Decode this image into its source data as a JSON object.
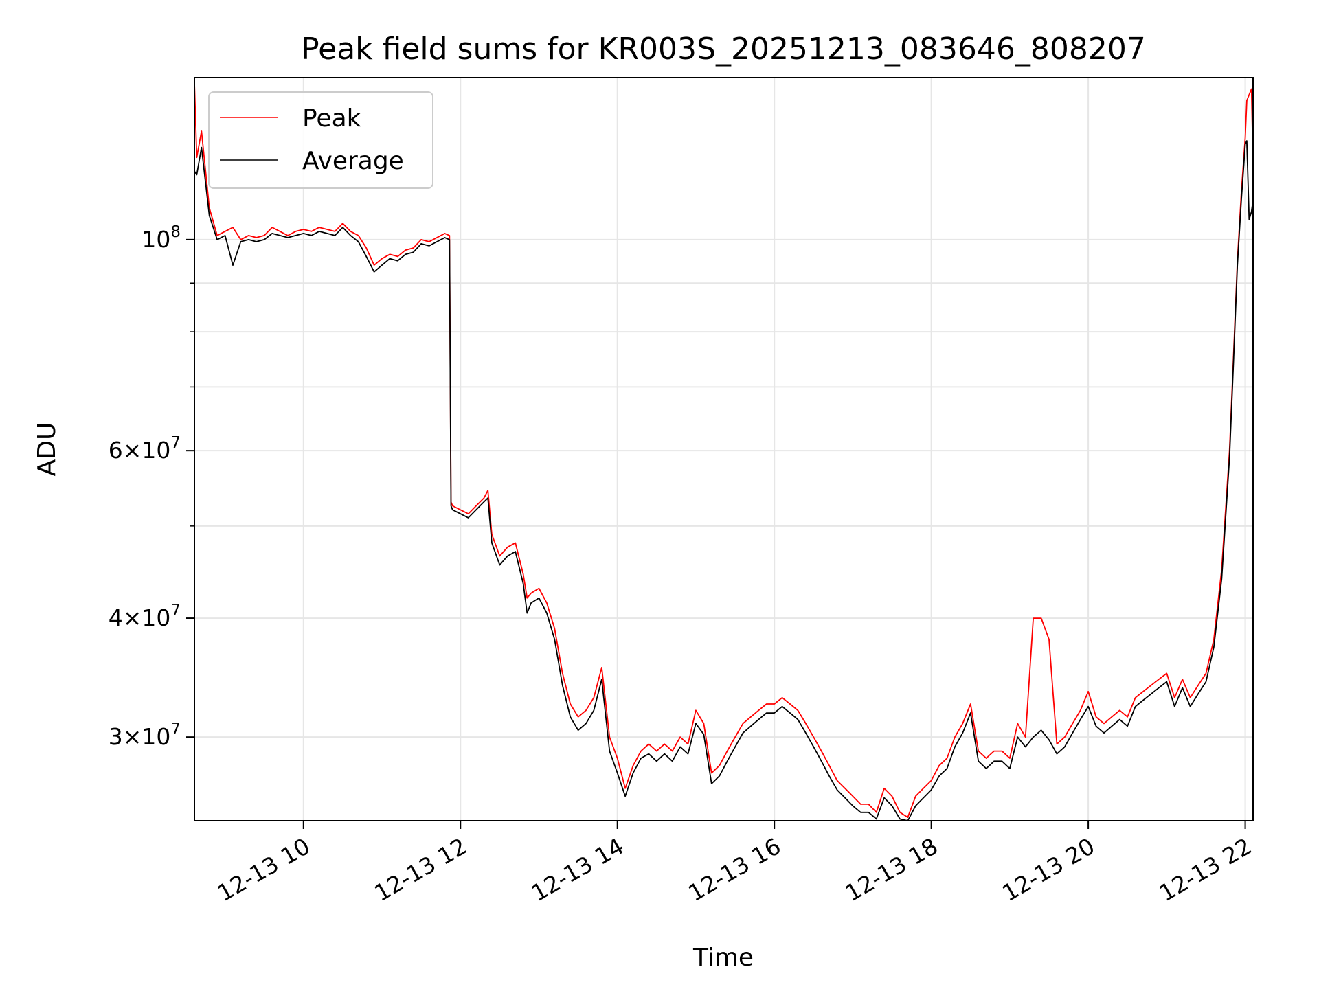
{
  "chart_data": {
    "type": "line",
    "title": "Peak field sums for KR003S_20251213_083646_808207",
    "xlabel": "Time",
    "ylabel": "ADU",
    "x_unit": "hour of 2025-12-13",
    "xlim": [
      8.61,
      22.1
    ],
    "ylim": [
      24500000,
      148000000
    ],
    "yscale": "log",
    "grid": true,
    "legend_position": "top-left",
    "x_ticks": [
      {
        "value": 10,
        "label": "12-13 10"
      },
      {
        "value": 12,
        "label": "12-13 12"
      },
      {
        "value": 14,
        "label": "12-13 14"
      },
      {
        "value": 16,
        "label": "12-13 16"
      },
      {
        "value": 18,
        "label": "12-13 18"
      },
      {
        "value": 20,
        "label": "12-13 20"
      },
      {
        "value": 22,
        "label": "12-13 22"
      }
    ],
    "y_ticks": [
      {
        "value": 30000000,
        "mant": "3",
        "exp": "7"
      },
      {
        "value": 40000000,
        "mant": "4",
        "exp": "7"
      },
      {
        "value": 60000000,
        "mant": "6",
        "exp": "7"
      },
      {
        "value": 100000000,
        "mant": "",
        "exp": "8"
      }
    ],
    "y_minor_ticks": [
      50000000,
      70000000,
      80000000,
      90000000
    ],
    "x": [
      8.61,
      8.64,
      8.7,
      8.8,
      8.9,
      9.0,
      9.1,
      9.2,
      9.3,
      9.4,
      9.5,
      9.6,
      9.7,
      9.8,
      9.9,
      10.0,
      10.1,
      10.2,
      10.3,
      10.4,
      10.5,
      10.6,
      10.7,
      10.8,
      10.9,
      11.0,
      11.1,
      11.2,
      11.3,
      11.4,
      11.5,
      11.6,
      11.7,
      11.8,
      11.86,
      11.88,
      11.9,
      12.0,
      12.1,
      12.2,
      12.3,
      12.35,
      12.4,
      12.5,
      12.6,
      12.7,
      12.8,
      12.85,
      12.9,
      13.0,
      13.1,
      13.2,
      13.3,
      13.4,
      13.5,
      13.6,
      13.7,
      13.8,
      13.9,
      14.0,
      14.1,
      14.2,
      14.3,
      14.4,
      14.5,
      14.6,
      14.7,
      14.8,
      14.9,
      15.0,
      15.1,
      15.2,
      15.3,
      15.4,
      15.5,
      15.6,
      15.7,
      15.8,
      15.9,
      16.0,
      16.1,
      16.2,
      16.3,
      16.4,
      16.5,
      16.6,
      16.7,
      16.8,
      16.9,
      17.0,
      17.1,
      17.2,
      17.3,
      17.4,
      17.5,
      17.6,
      17.7,
      17.8,
      17.9,
      18.0,
      18.1,
      18.2,
      18.3,
      18.4,
      18.5,
      18.6,
      18.7,
      18.8,
      18.9,
      19.0,
      19.1,
      19.2,
      19.3,
      19.4,
      19.5,
      19.6,
      19.7,
      19.8,
      19.9,
      20.0,
      20.1,
      20.2,
      20.3,
      20.4,
      20.5,
      20.6,
      20.7,
      20.8,
      20.9,
      21.0,
      21.1,
      21.2,
      21.3,
      21.4,
      21.5,
      21.6,
      21.7,
      21.8,
      21.85,
      21.9,
      21.95,
      22.0,
      22.02,
      22.05,
      22.08,
      22.1
    ],
    "series": [
      {
        "name": "Peak",
        "color": "#ff0000",
        "values": [
          146000000,
          122000000,
          130000000,
          108000000,
          101000000,
          102000000,
          103000000,
          100000000,
          101000000,
          100500000,
          101000000,
          103000000,
          102000000,
          101000000,
          102000000,
          102500000,
          102000000,
          103000000,
          102500000,
          102000000,
          104000000,
          102000000,
          101000000,
          98000000,
          94000000,
          95500000,
          96500000,
          96000000,
          97500000,
          98000000,
          100000000,
          99500000,
          100500000,
          101500000,
          101000000,
          53000000,
          52500000,
          52000000,
          51500000,
          52500000,
          53500000,
          54500000,
          49000000,
          46500000,
          47500000,
          48000000,
          44500000,
          42000000,
          42500000,
          43000000,
          41500000,
          39000000,
          35000000,
          32500000,
          31500000,
          32000000,
          33000000,
          35500000,
          30000000,
          28500000,
          26500000,
          28000000,
          29000000,
          29500000,
          29000000,
          29500000,
          29000000,
          30000000,
          29500000,
          32000000,
          31000000,
          27500000,
          28000000,
          29000000,
          30000000,
          31000000,
          31500000,
          32000000,
          32500000,
          32500000,
          33000000,
          32500000,
          32000000,
          31000000,
          30000000,
          29000000,
          28000000,
          27000000,
          26500000,
          26000000,
          25500000,
          25500000,
          25000000,
          26500000,
          26000000,
          25000000,
          24700000,
          26000000,
          26500000,
          27000000,
          28000000,
          28500000,
          30000000,
          31000000,
          32500000,
          29000000,
          28500000,
          29000000,
          29000000,
          28500000,
          31000000,
          30000000,
          40000000,
          40000000,
          38000000,
          29500000,
          30000000,
          31000000,
          32000000,
          33500000,
          31500000,
          31000000,
          31500000,
          32000000,
          31500000,
          33000000,
          33500000,
          34000000,
          34500000,
          35000000,
          33000000,
          34500000,
          33000000,
          34000000,
          35000000,
          38000000,
          45000000,
          60000000,
          75000000,
          95000000,
          112000000,
          128000000,
          140000000,
          142000000,
          144000000,
          120000000
        ]
      },
      {
        "name": "Average",
        "color": "#000000",
        "values": [
          118000000,
          117000000,
          125000000,
          106000000,
          100000000,
          101000000,
          94000000,
          99500000,
          100000000,
          99500000,
          100000000,
          101500000,
          101000000,
          100500000,
          101000000,
          101500000,
          101000000,
          102000000,
          101500000,
          101000000,
          103000000,
          101000000,
          99500000,
          96000000,
          92500000,
          94000000,
          95500000,
          95000000,
          96500000,
          97000000,
          99000000,
          98500000,
          99500000,
          100500000,
          100000000,
          52500000,
          52000000,
          51500000,
          51000000,
          52000000,
          53000000,
          53500000,
          48000000,
          45500000,
          46500000,
          47000000,
          43500000,
          40500000,
          41500000,
          42000000,
          40500000,
          38000000,
          34000000,
          31500000,
          30500000,
          31000000,
          32000000,
          34500000,
          29000000,
          27500000,
          26000000,
          27500000,
          28500000,
          28800000,
          28300000,
          28800000,
          28300000,
          29300000,
          28800000,
          31000000,
          30200000,
          26800000,
          27300000,
          28300000,
          29300000,
          30300000,
          30800000,
          31300000,
          31800000,
          31800000,
          32300000,
          31800000,
          31300000,
          30300000,
          29300000,
          28300000,
          27300000,
          26400000,
          25900000,
          25400000,
          25000000,
          25000000,
          24600000,
          25900000,
          25400000,
          24600000,
          24500000,
          25400000,
          25900000,
          26400000,
          27300000,
          27800000,
          29300000,
          30300000,
          31800000,
          28300000,
          27800000,
          28300000,
          28300000,
          27800000,
          30000000,
          29300000,
          30000000,
          30500000,
          29800000,
          28800000,
          29300000,
          30300000,
          31300000,
          32300000,
          30800000,
          30300000,
          30800000,
          31300000,
          30800000,
          32300000,
          32800000,
          33300000,
          33800000,
          34300000,
          32300000,
          33800000,
          32300000,
          33300000,
          34300000,
          37300000,
          44000000,
          59000000,
          74000000,
          94000000,
          110000000,
          126000000,
          127000000,
          105000000,
          107000000,
          110000000
        ]
      }
    ]
  }
}
